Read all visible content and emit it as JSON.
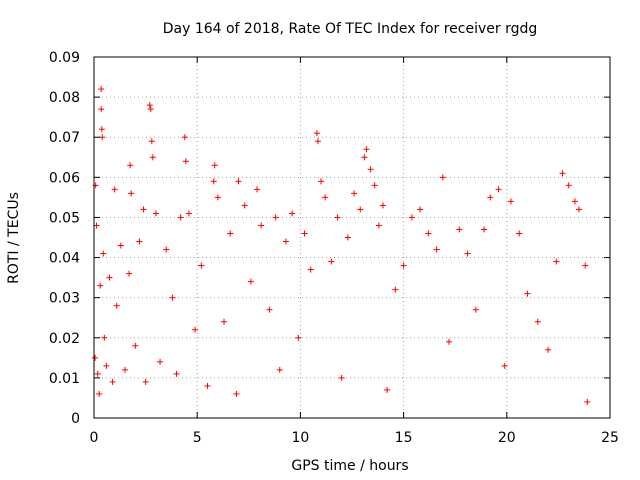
{
  "chart_data": {
    "type": "scatter",
    "title": "Day 164 of 2018, Rate Of TEC Index for receiver rgdg",
    "xlabel": "GPS time / hours",
    "ylabel": "ROTI / TECUs",
    "xlim": [
      0,
      25
    ],
    "ylim": [
      0,
      0.09
    ],
    "x_ticks": [
      "0",
      "5",
      "10",
      "15",
      "20",
      "25"
    ],
    "y_ticks": [
      "0",
      "0.01",
      "0.02",
      "0.03",
      "0.04",
      "0.05",
      "0.06",
      "0.07",
      "0.08",
      "0.09"
    ],
    "x_tick_values": [
      0,
      5,
      10,
      15,
      20,
      25
    ],
    "y_tick_values": [
      0,
      0.01,
      0.02,
      0.03,
      0.04,
      0.05,
      0.06,
      0.07,
      0.08,
      0.09
    ],
    "grid": true,
    "marker": "+",
    "marker_color": "#ff0000",
    "series": [
      {
        "values": [
          [
            0.05,
            0.015
          ],
          [
            0.08,
            0.058
          ],
          [
            0.12,
            0.048
          ],
          [
            0.18,
            0.011
          ],
          [
            0.25,
            0.006
          ],
          [
            0.3,
            0.033
          ],
          [
            0.35,
            0.082
          ],
          [
            0.35,
            0.077
          ],
          [
            0.38,
            0.072
          ],
          [
            0.4,
            0.07
          ],
          [
            0.45,
            0.041
          ],
          [
            0.5,
            0.02
          ],
          [
            0.6,
            0.013
          ],
          [
            0.75,
            0.035
          ],
          [
            0.9,
            0.009
          ],
          [
            1.0,
            0.057
          ],
          [
            1.1,
            0.028
          ],
          [
            1.3,
            0.043
          ],
          [
            1.5,
            0.012
          ],
          [
            1.7,
            0.036
          ],
          [
            1.8,
            0.056
          ],
          [
            1.75,
            0.063
          ],
          [
            2.0,
            0.018
          ],
          [
            2.2,
            0.044
          ],
          [
            2.4,
            0.052
          ],
          [
            2.5,
            0.009
          ],
          [
            2.7,
            0.078
          ],
          [
            2.75,
            0.077
          ],
          [
            2.8,
            0.069
          ],
          [
            2.85,
            0.065
          ],
          [
            3.0,
            0.051
          ],
          [
            3.2,
            0.014
          ],
          [
            3.5,
            0.042
          ],
          [
            3.8,
            0.03
          ],
          [
            4.0,
            0.011
          ],
          [
            4.2,
            0.05
          ],
          [
            4.4,
            0.07
          ],
          [
            4.45,
            0.064
          ],
          [
            4.6,
            0.051
          ],
          [
            4.9,
            0.022
          ],
          [
            5.2,
            0.038
          ],
          [
            5.5,
            0.008
          ],
          [
            5.8,
            0.059
          ],
          [
            5.85,
            0.063
          ],
          [
            6.0,
            0.055
          ],
          [
            6.3,
            0.024
          ],
          [
            6.6,
            0.046
          ],
          [
            6.9,
            0.006
          ],
          [
            7.0,
            0.059
          ],
          [
            7.3,
            0.053
          ],
          [
            7.6,
            0.034
          ],
          [
            7.9,
            0.057
          ],
          [
            8.1,
            0.048
          ],
          [
            8.5,
            0.027
          ],
          [
            8.8,
            0.05
          ],
          [
            9.0,
            0.012
          ],
          [
            9.3,
            0.044
          ],
          [
            9.6,
            0.051
          ],
          [
            9.9,
            0.02
          ],
          [
            10.2,
            0.046
          ],
          [
            10.5,
            0.037
          ],
          [
            10.8,
            0.071
          ],
          [
            10.85,
            0.069
          ],
          [
            11.0,
            0.059
          ],
          [
            11.2,
            0.055
          ],
          [
            11.5,
            0.039
          ],
          [
            11.8,
            0.05
          ],
          [
            12.0,
            0.01
          ],
          [
            12.3,
            0.045
          ],
          [
            12.6,
            0.056
          ],
          [
            12.9,
            0.052
          ],
          [
            13.1,
            0.065
          ],
          [
            13.2,
            0.067
          ],
          [
            13.4,
            0.062
          ],
          [
            13.6,
            0.058
          ],
          [
            13.8,
            0.048
          ],
          [
            14.0,
            0.053
          ],
          [
            14.2,
            0.007
          ],
          [
            14.6,
            0.032
          ],
          [
            15.0,
            0.038
          ],
          [
            15.4,
            0.05
          ],
          [
            15.8,
            0.052
          ],
          [
            16.2,
            0.046
          ],
          [
            16.6,
            0.042
          ],
          [
            16.9,
            0.06
          ],
          [
            17.2,
            0.019
          ],
          [
            17.7,
            0.047
          ],
          [
            18.1,
            0.041
          ],
          [
            18.5,
            0.027
          ],
          [
            18.9,
            0.047
          ],
          [
            19.2,
            0.055
          ],
          [
            19.6,
            0.057
          ],
          [
            19.9,
            0.013
          ],
          [
            20.2,
            0.054
          ],
          [
            20.6,
            0.046
          ],
          [
            21.0,
            0.031
          ],
          [
            21.5,
            0.024
          ],
          [
            22.0,
            0.017
          ],
          [
            22.4,
            0.039
          ],
          [
            22.7,
            0.061
          ],
          [
            23.0,
            0.058
          ],
          [
            23.3,
            0.054
          ],
          [
            23.5,
            0.052
          ],
          [
            23.8,
            0.038
          ],
          [
            23.9,
            0.004
          ]
        ]
      }
    ]
  }
}
